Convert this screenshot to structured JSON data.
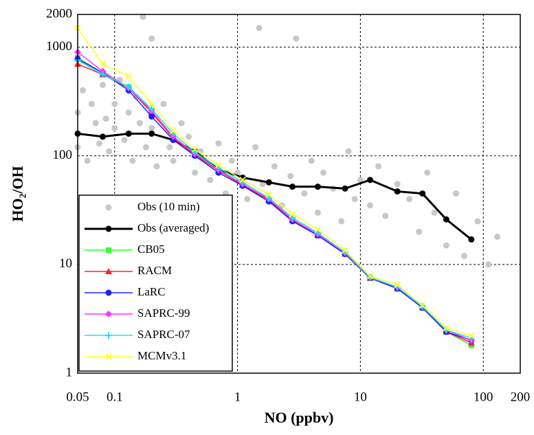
{
  "chart_data": {
    "type": "line",
    "xlabel": "NO (ppbv)",
    "ylabel": "HO₂/OH",
    "xscale": "log",
    "yscale": "log",
    "xlim": [
      0.05,
      200
    ],
    "ylim": [
      1,
      2000
    ],
    "xticks": [
      0.05,
      0.1,
      1,
      10,
      100,
      200
    ],
    "yticks": [
      1,
      10,
      100,
      1000,
      2000
    ],
    "grid": true,
    "legend": "lower left",
    "x": [
      0.05,
      0.08,
      0.13,
      0.2,
      0.3,
      0.45,
      0.7,
      1.1,
      1.8,
      2.8,
      4.5,
      7.5,
      12,
      20,
      32,
      50,
      80
    ],
    "series": [
      {
        "name": "Obs (10 min)",
        "color": "#c8c8c8",
        "marker": "dot",
        "line": false,
        "x": [
          0.05,
          0.05,
          0.055,
          0.06,
          0.065,
          0.07,
          0.075,
          0.08,
          0.085,
          0.09,
          0.1,
          0.1,
          0.11,
          0.12,
          0.13,
          0.14,
          0.15,
          0.16,
          0.18,
          0.2,
          0.2,
          0.22,
          0.25,
          0.28,
          0.3,
          0.35,
          0.4,
          0.45,
          0.5,
          0.6,
          0.7,
          0.8,
          0.9,
          1,
          1.2,
          1.4,
          1.6,
          2,
          2.3,
          2.7,
          3,
          3.5,
          4,
          4.5,
          5,
          6,
          7,
          8,
          9,
          10,
          12,
          14,
          16,
          20,
          25,
          30,
          35,
          40,
          50,
          60,
          70,
          90,
          110,
          130,
          0.17,
          1.5
        ],
        "values": [
          250,
          120,
          400,
          90,
          300,
          200,
          130,
          450,
          220,
          110,
          300,
          180,
          500,
          140,
          250,
          90,
          350,
          200,
          120,
          1200,
          180,
          80,
          300,
          120,
          90,
          200,
          150,
          70,
          110,
          60,
          130,
          45,
          90,
          70,
          40,
          120,
          55,
          80,
          35,
          65,
          1200,
          45,
          90,
          30,
          70,
          50,
          25,
          110,
          40,
          60,
          35,
          80,
          28,
          55,
          40,
          20,
          70,
          30,
          15,
          45,
          12,
          25,
          10,
          18,
          1900,
          1500
        ]
      },
      {
        "name": "Obs (averaged)",
        "color": "#000000",
        "marker": "circle",
        "width": 3,
        "values": [
          160,
          150,
          160,
          160,
          140,
          110,
          75,
          63,
          57,
          52,
          52,
          50,
          60,
          47,
          45,
          26,
          17
        ]
      },
      {
        "name": "CB05",
        "color": "#33ff33",
        "marker": "square",
        "values": [
          800,
          580,
          430,
          260,
          150,
          105,
          75,
          55,
          40,
          26,
          19,
          12.5,
          7.5,
          6,
          4,
          2.4,
          1.8
        ]
      },
      {
        "name": "RACM",
        "color": "#ff2020",
        "marker": "triangle",
        "values": [
          700,
          560,
          420,
          250,
          145,
          102,
          73,
          54,
          39,
          25.5,
          18.5,
          12.5,
          7.5,
          6,
          4,
          2.4,
          1.9
        ]
      },
      {
        "name": "LaRC",
        "color": "#1f1fff",
        "marker": "circle",
        "values": [
          780,
          580,
          400,
          230,
          140,
          100,
          70,
          53,
          38,
          25,
          18.5,
          12.5,
          7.5,
          6,
          4,
          2.4,
          2
        ]
      },
      {
        "name": "SAPRC-99",
        "color": "#ff33ff",
        "marker": "diamond",
        "values": [
          900,
          600,
          420,
          260,
          150,
          104,
          74,
          55,
          40,
          26,
          19,
          12.8,
          7.6,
          6.2,
          4.1,
          2.5,
          2
        ]
      },
      {
        "name": "SAPRC-07",
        "color": "#22ddff",
        "marker": "plus",
        "values": [
          760,
          560,
          430,
          270,
          160,
          108,
          78,
          57,
          41,
          27,
          19.5,
          13,
          7.6,
          6.2,
          4.1,
          2.5,
          2.1
        ]
      },
      {
        "name": "MCMv3.1",
        "color": "#ffff22",
        "marker": "x",
        "values": [
          1500,
          700,
          540,
          300,
          170,
          115,
          82,
          60,
          44,
          29,
          21,
          13.5,
          7.8,
          6.5,
          4.2,
          2.6,
          2.2
        ]
      }
    ]
  }
}
